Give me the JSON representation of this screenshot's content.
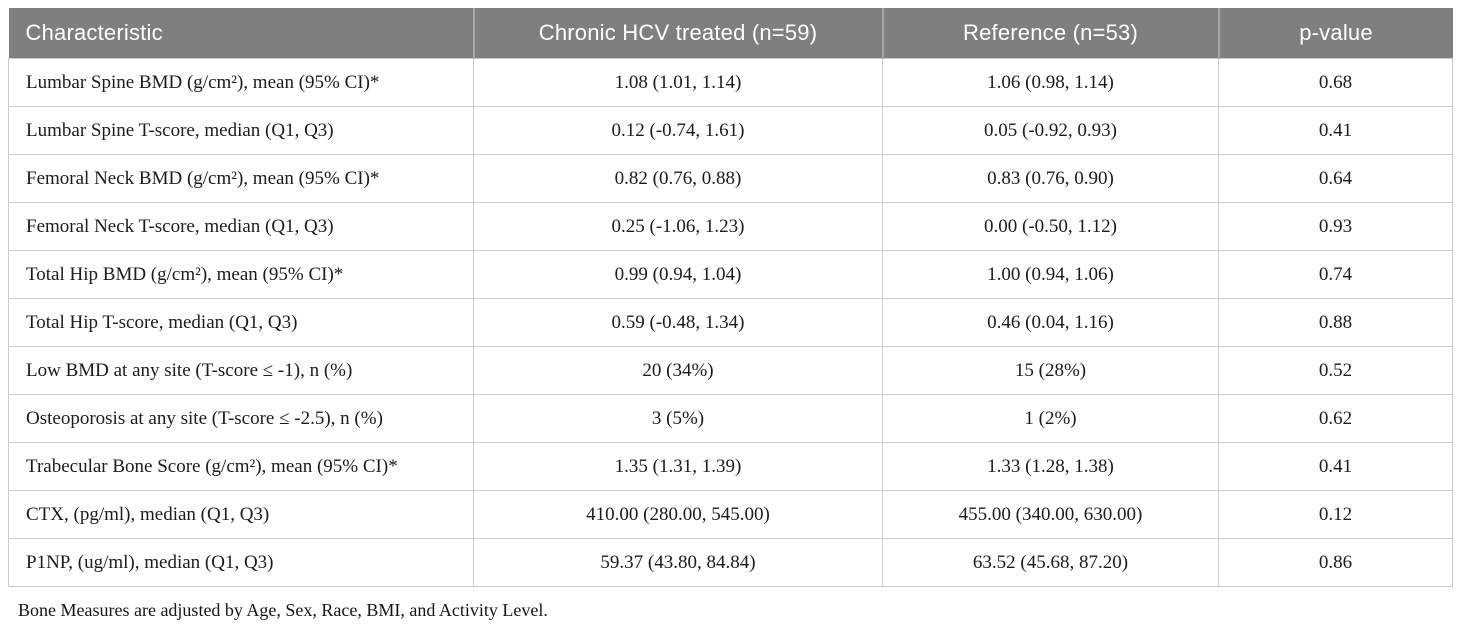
{
  "colors": {
    "header_bg": "#7e8080",
    "header_text": "#ffffff",
    "header_divider": "#a6a9a8",
    "grid_border": "#cccccc",
    "body_text": "#1b1b1b"
  },
  "table": {
    "columns": [
      {
        "label": "Characteristic"
      },
      {
        "label": "Chronic HCV treated (n=59)"
      },
      {
        "label": "Reference (n=53)"
      },
      {
        "label": "p-value"
      }
    ],
    "rows": [
      {
        "characteristic": "Lumbar Spine BMD (g/cm²), mean (95% CI)*",
        "treated": "1.08 (1.01, 1.14)",
        "reference": "1.06 (0.98, 1.14)",
        "p_value": "0.68"
      },
      {
        "characteristic": "Lumbar Spine T-score, median (Q1, Q3)",
        "treated": "0.12 (-0.74, 1.61)",
        "reference": "0.05 (-0.92, 0.93)",
        "p_value": "0.41"
      },
      {
        "characteristic": "Femoral Neck BMD (g/cm²), mean (95% CI)*",
        "treated": "0.82 (0.76, 0.88)",
        "reference": "0.83 (0.76, 0.90)",
        "p_value": "0.64"
      },
      {
        "characteristic": "Femoral Neck T-score, median (Q1, Q3)",
        "treated": "0.25 (-1.06, 1.23)",
        "reference": "0.00 (-0.50, 1.12)",
        "p_value": "0.93"
      },
      {
        "characteristic": "Total Hip BMD (g/cm²), mean (95% CI)*",
        "treated": "0.99 (0.94, 1.04)",
        "reference": "1.00 (0.94, 1.06)",
        "p_value": "0.74"
      },
      {
        "characteristic": "Total Hip T-score, median (Q1, Q3)",
        "treated": "0.59 (-0.48, 1.34)",
        "reference": "0.46 (0.04, 1.16)",
        "p_value": "0.88"
      },
      {
        "characteristic": "Low BMD at any site (T-score ≤ -1), n (%)",
        "treated": "20 (34%)",
        "reference": "15 (28%)",
        "p_value": "0.52"
      },
      {
        "characteristic": "Osteoporosis at any site (T-score ≤ -2.5), n (%)",
        "treated": "3 (5%)",
        "reference": "1 (2%)",
        "p_value": "0.62"
      },
      {
        "characteristic": "Trabecular Bone Score (g/cm²), mean (95% CI)*",
        "treated": "1.35 (1.31, 1.39)",
        "reference": "1.33 (1.28, 1.38)",
        "p_value": "0.41"
      },
      {
        "characteristic": "CTX, (pg/ml), median (Q1, Q3)",
        "treated": "410.00 (280.00, 545.00)",
        "reference": "455.00 (340.00, 630.00)",
        "p_value": "0.12"
      },
      {
        "characteristic": "P1NP, (ug/ml), median (Q1, Q3)",
        "treated": "59.37 (43.80, 84.84)",
        "reference": "63.52 (45.68, 87.20)",
        "p_value": "0.86"
      }
    ],
    "footnote": "Bone Measures are adjusted by Age, Sex, Race, BMI, and Activity Level."
  }
}
